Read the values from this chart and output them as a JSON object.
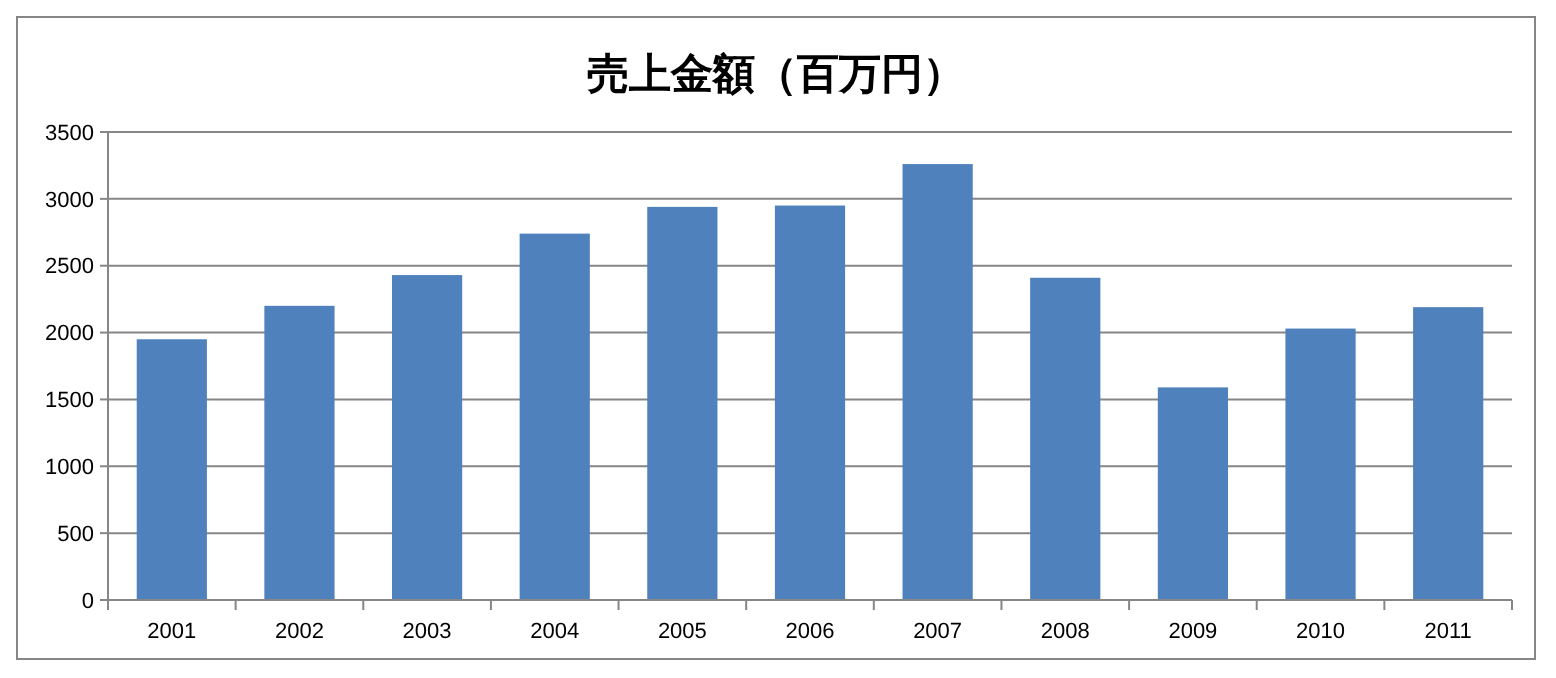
{
  "chart_data": {
    "type": "bar",
    "title": "売上金額（百万円）",
    "categories": [
      "2001",
      "2002",
      "2003",
      "2004",
      "2005",
      "2006",
      "2007",
      "2008",
      "2009",
      "2010",
      "2011"
    ],
    "values": [
      1950,
      2200,
      2430,
      2740,
      2940,
      2950,
      3260,
      2410,
      1590,
      2030,
      2190
    ],
    "color": "#4f81bd",
    "ylim": [
      0,
      3500
    ],
    "yticks": [
      0,
      500,
      1000,
      1500,
      2000,
      2500,
      3000,
      3500
    ],
    "grid": "y"
  }
}
